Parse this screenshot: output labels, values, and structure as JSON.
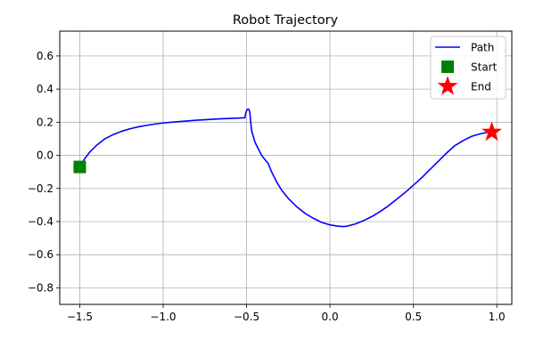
{
  "chart_data": {
    "type": "line",
    "title": "Robot Trajectory",
    "xlabel": "",
    "ylabel": "",
    "xlim": [
      -1.62,
      1.09
    ],
    "ylim": [
      -0.9,
      0.75
    ],
    "xticks": [
      -1.5,
      -1.0,
      -0.5,
      0.0,
      0.5,
      1.0
    ],
    "xtick_labels": [
      "−1.5",
      "−1.0",
      "−0.5",
      "0.0",
      "0.5",
      "1.0"
    ],
    "yticks": [
      0.6,
      0.4,
      0.2,
      0.0,
      -0.2,
      -0.4,
      -0.6,
      -0.8
    ],
    "ytick_labels": [
      "0.6",
      "0.4",
      "0.2",
      "0.0",
      "−0.2",
      "−0.4",
      "−0.6",
      "−0.8"
    ],
    "grid": true,
    "legend_position": "top-right",
    "series": [
      {
        "name": "Path",
        "kind": "line",
        "color": "#0000ff",
        "x": [
          -1.5,
          -1.47,
          -1.44,
          -1.4,
          -1.35,
          -1.3,
          -1.25,
          -1.2,
          -1.15,
          -1.1,
          -1.05,
          -1.0,
          -0.95,
          -0.9,
          -0.85,
          -0.8,
          -0.75,
          -0.7,
          -0.65,
          -0.6,
          -0.55,
          -0.51,
          -0.505,
          -0.5,
          -0.495,
          -0.49,
          -0.485,
          -0.48,
          -0.475,
          -0.47,
          -0.46,
          -0.45,
          -0.43,
          -0.41,
          -0.39,
          -0.37,
          -0.35,
          -0.32,
          -0.29,
          -0.25,
          -0.2,
          -0.15,
          -0.1,
          -0.05,
          0.0,
          0.05,
          0.08,
          0.1,
          0.15,
          0.2,
          0.25,
          0.3,
          0.35,
          0.4,
          0.45,
          0.5,
          0.55,
          0.6,
          0.65,
          0.7,
          0.75,
          0.8,
          0.85,
          0.9,
          0.94,
          0.97
        ],
        "y": [
          -0.07,
          -0.02,
          0.02,
          0.06,
          0.1,
          0.125,
          0.145,
          0.16,
          0.172,
          0.181,
          0.189,
          0.195,
          0.2,
          0.204,
          0.208,
          0.212,
          0.215,
          0.218,
          0.221,
          0.223,
          0.225,
          0.227,
          0.255,
          0.27,
          0.278,
          0.28,
          0.275,
          0.255,
          0.2,
          0.15,
          0.115,
          0.08,
          0.04,
          0.0,
          -0.025,
          -0.05,
          -0.1,
          -0.16,
          -0.21,
          -0.26,
          -0.31,
          -0.35,
          -0.38,
          -0.405,
          -0.42,
          -0.428,
          -0.43,
          -0.428,
          -0.415,
          -0.395,
          -0.37,
          -0.34,
          -0.305,
          -0.265,
          -0.225,
          -0.18,
          -0.135,
          -0.085,
          -0.035,
          0.015,
          0.06,
          0.09,
          0.115,
          0.13,
          0.138,
          0.14
        ]
      },
      {
        "name": "Start",
        "kind": "marker",
        "marker": "square",
        "color": "#008000",
        "x": [
          -1.5
        ],
        "y": [
          -0.07
        ]
      },
      {
        "name": "End",
        "kind": "marker",
        "marker": "star",
        "color": "#ff0000",
        "x": [
          0.97
        ],
        "y": [
          0.14
        ]
      }
    ]
  }
}
